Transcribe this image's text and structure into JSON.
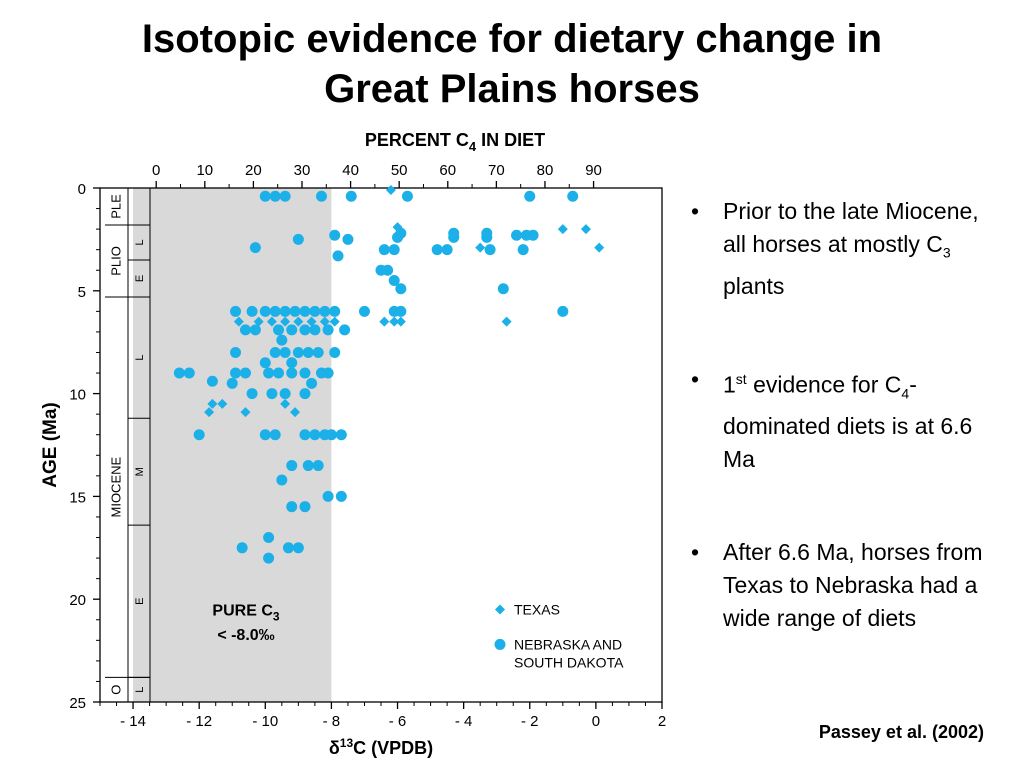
{
  "title": {
    "line1": "Isotopic evidence for dietary change in",
    "line2": "Great Plains horses"
  },
  "bullets": [
    {
      "pre": "Prior to the late Miocene, all horses at mostly C",
      "sub": "3",
      "post": " plants"
    },
    {
      "pre": "1",
      "sup": "st",
      "mid": " evidence for C",
      "sub": "4",
      "post": "-dominated diets is at 6.6 Ma"
    },
    {
      "pre": "After 6.6 Ma, horses from Texas to Nebraska had a wide range of diets"
    }
  ],
  "citation": "Passey et al. (2002)",
  "colors": {
    "points": "#1cb0e8",
    "shade": "#d9d9d9",
    "axis": "#000000"
  },
  "chart_data": {
    "type": "scatter",
    "top_axis": {
      "label_main": "PERCENT  C",
      "label_sub": "4",
      "label_post": "  IN DIET",
      "ticks": [
        0,
        10,
        20,
        30,
        40,
        50,
        60,
        70,
        80,
        90
      ],
      "d13c_at_0": -13.3,
      "d13c_per_percent": 0.147
    },
    "xlabel_prefix": "δ",
    "xlabel_sup": "13",
    "xlabel_post": "C  (VPDB)",
    "ylabel": "AGE  (Ma)",
    "xlim": [
      -15,
      2
    ],
    "ylim": [
      25,
      0
    ],
    "x_ticks": [
      -14,
      -12,
      -10,
      -8,
      -6,
      -4,
      -2,
      0,
      2
    ],
    "y_ticks": [
      0,
      5,
      10,
      15,
      20,
      25
    ],
    "shaded_region": {
      "x": [
        -14,
        -8
      ],
      "label_line1": "PURE  C",
      "label_sub": "3",
      "label_line2": "< -8.0‰"
    },
    "stratigraphy": {
      "epochs": [
        {
          "name": "PLE",
          "from": 0,
          "to": 1.8
        },
        {
          "name": "PLIO",
          "from": 1.8,
          "to": 5.3
        },
        {
          "name": "MIOCENE",
          "from": 5.3,
          "to": 23.8
        },
        {
          "name": "O",
          "from": 23.8,
          "to": 25
        }
      ],
      "stages": [
        {
          "name": "",
          "from": 0,
          "to": 1.8
        },
        {
          "name": "L",
          "from": 1.8,
          "to": 3.5
        },
        {
          "name": "E",
          "from": 3.5,
          "to": 5.3
        },
        {
          "name": "L",
          "from": 5.3,
          "to": 11.2
        },
        {
          "name": "M",
          "from": 11.2,
          "to": 16.4
        },
        {
          "name": "E",
          "from": 16.4,
          "to": 23.8
        },
        {
          "name": "L",
          "from": 23.8,
          "to": 25
        }
      ]
    },
    "series": [
      {
        "name": "TEXAS",
        "marker": "diamond",
        "points": [
          [
            -6.2,
            0.1
          ],
          [
            -6.0,
            1.9
          ],
          [
            -1.0,
            2.0
          ],
          [
            -0.3,
            2.0
          ],
          [
            0.1,
            2.9
          ],
          [
            -3.5,
            2.9
          ],
          [
            -10.8,
            6.5
          ],
          [
            -10.2,
            6.5
          ],
          [
            -9.8,
            6.5
          ],
          [
            -9.4,
            6.5
          ],
          [
            -9.0,
            6.5
          ],
          [
            -8.6,
            6.5
          ],
          [
            -8.2,
            6.5
          ],
          [
            -7.9,
            6.5
          ],
          [
            -6.4,
            6.5
          ],
          [
            -6.1,
            6.5
          ],
          [
            -5.9,
            6.5
          ],
          [
            -2.7,
            6.5
          ],
          [
            -11.6,
            10.5
          ],
          [
            -11.3,
            10.5
          ],
          [
            -10.6,
            10.9
          ],
          [
            -11.7,
            10.9
          ],
          [
            -9.4,
            10.5
          ],
          [
            -9.1,
            10.9
          ]
        ]
      },
      {
        "name": "NEBRASKA AND\nSOUTH DAKOTA",
        "marker": "circle",
        "points": [
          [
            -10.0,
            0.4
          ],
          [
            -9.7,
            0.4
          ],
          [
            -9.4,
            0.4
          ],
          [
            -8.3,
            0.4
          ],
          [
            -7.4,
            0.4
          ],
          [
            -5.7,
            0.4
          ],
          [
            -2.0,
            0.4
          ],
          [
            -0.7,
            0.4
          ],
          [
            -7.9,
            2.3
          ],
          [
            -7.5,
            2.5
          ],
          [
            -9.0,
            2.5
          ],
          [
            -5.9,
            2.2
          ],
          [
            -6.0,
            2.4
          ],
          [
            -4.3,
            2.4
          ],
          [
            -4.3,
            2.2
          ],
          [
            -3.3,
            2.4
          ],
          [
            -3.3,
            2.2
          ],
          [
            -2.4,
            2.3
          ],
          [
            -2.1,
            2.3
          ],
          [
            -1.9,
            2.3
          ],
          [
            -10.3,
            2.9
          ],
          [
            -6.4,
            3.0
          ],
          [
            -6.1,
            3.0
          ],
          [
            -4.8,
            3.0
          ],
          [
            -4.5,
            3.0
          ],
          [
            -3.2,
            3.0
          ],
          [
            -2.2,
            3.0
          ],
          [
            -7.8,
            3.3
          ],
          [
            -6.5,
            4.0
          ],
          [
            -6.3,
            4.0
          ],
          [
            -6.1,
            4.5
          ],
          [
            -5.9,
            4.9
          ],
          [
            -2.8,
            4.9
          ],
          [
            -10.9,
            6.0
          ],
          [
            -10.4,
            6.0
          ],
          [
            -10.0,
            6.0
          ],
          [
            -9.7,
            6.0
          ],
          [
            -9.4,
            6.0
          ],
          [
            -9.1,
            6.0
          ],
          [
            -8.8,
            6.0
          ],
          [
            -8.5,
            6.0
          ],
          [
            -8.2,
            6.0
          ],
          [
            -7.9,
            6.0
          ],
          [
            -7.0,
            6.0
          ],
          [
            -6.1,
            6.0
          ],
          [
            -5.9,
            6.0
          ],
          [
            -1.0,
            6.0
          ],
          [
            -10.6,
            6.9
          ],
          [
            -10.3,
            6.9
          ],
          [
            -9.6,
            6.9
          ],
          [
            -9.2,
            6.9
          ],
          [
            -8.8,
            6.9
          ],
          [
            -8.5,
            6.9
          ],
          [
            -8.1,
            6.9
          ],
          [
            -7.6,
            6.9
          ],
          [
            -9.5,
            7.4
          ],
          [
            -10.9,
            8.0
          ],
          [
            -9.7,
            8.0
          ],
          [
            -9.4,
            8.0
          ],
          [
            -9.0,
            8.0
          ],
          [
            -8.7,
            8.0
          ],
          [
            -8.4,
            8.0
          ],
          [
            -7.9,
            8.0
          ],
          [
            -10.0,
            8.5
          ],
          [
            -9.2,
            8.5
          ],
          [
            -12.6,
            9.0
          ],
          [
            -12.3,
            9.0
          ],
          [
            -10.9,
            9.0
          ],
          [
            -10.6,
            9.0
          ],
          [
            -9.9,
            9.0
          ],
          [
            -9.6,
            9.0
          ],
          [
            -9.2,
            9.0
          ],
          [
            -8.8,
            9.0
          ],
          [
            -8.3,
            9.0
          ],
          [
            -8.1,
            9.0
          ],
          [
            -11.6,
            9.4
          ],
          [
            -11.0,
            9.5
          ],
          [
            -8.6,
            9.5
          ],
          [
            -10.4,
            10.0
          ],
          [
            -9.8,
            10.0
          ],
          [
            -9.4,
            10.0
          ],
          [
            -8.8,
            10.0
          ],
          [
            -12.0,
            12.0
          ],
          [
            -10.0,
            12.0
          ],
          [
            -9.7,
            12.0
          ],
          [
            -8.8,
            12.0
          ],
          [
            -8.5,
            12.0
          ],
          [
            -8.2,
            12.0
          ],
          [
            -8.0,
            12.0
          ],
          [
            -7.7,
            12.0
          ],
          [
            -9.2,
            13.5
          ],
          [
            -8.7,
            13.5
          ],
          [
            -8.4,
            13.5
          ],
          [
            -9.5,
            14.2
          ],
          [
            -8.1,
            15.0
          ],
          [
            -7.7,
            15.0
          ],
          [
            -9.2,
            15.5
          ],
          [
            -8.8,
            15.5
          ],
          [
            -9.9,
            17.0
          ],
          [
            -10.7,
            17.5
          ],
          [
            -9.3,
            17.5
          ],
          [
            -9.0,
            17.5
          ],
          [
            -9.9,
            18.0
          ]
        ]
      }
    ],
    "legend": "lower-right"
  }
}
